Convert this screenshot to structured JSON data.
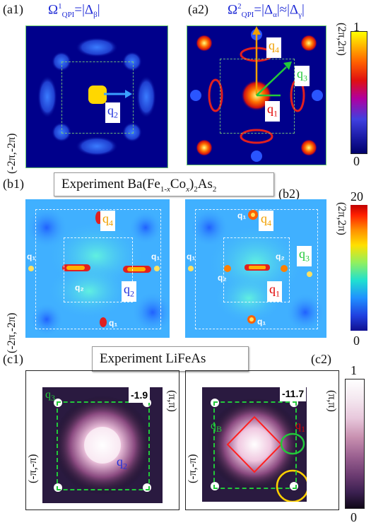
{
  "labels": {
    "a1": "(a1)",
    "a2": "(a2)",
    "b1": "(b1)",
    "b2": "(b2)",
    "c1": "(c1)",
    "c2": "(c2)"
  },
  "titles": {
    "a1_formula": "Ω¹QPI=|Δβ|",
    "a2_formula": "Ω²QPI=|Δα|≈|Δγ|",
    "b_title": "Experiment Ba(Fe1-xCox)2As2",
    "c_title": "Experiment LiFeAs"
  },
  "corners": {
    "a_top": "(2π,2π)",
    "a_bottom": "(-2π,-2π)",
    "b_top": "(2π,2π)",
    "b_bottom": "(-2π,-2π)",
    "c_top": "(π,π)",
    "c_bottom": "(-π,-π)"
  },
  "colorbars": {
    "a": {
      "max": "1",
      "min": "0"
    },
    "b": {
      "max": "20",
      "min": "0"
    },
    "c": {
      "max": "1",
      "min": "0"
    }
  },
  "q_labels": {
    "a1_q2": "q2",
    "a2_q1": "q1",
    "a2_q3": "q3",
    "a2_q4": "q4",
    "b1_q4": "q4",
    "b1_q2": "q2",
    "b2_q4": "q4",
    "b2_q3": "q3",
    "b2_q1": "q1",
    "c1_q3": "q3",
    "c1_q2": "q2",
    "c2_qB": "qB",
    "c2_q1": "q1"
  },
  "values": {
    "c1_value": "-1.9",
    "c2_value": "-11.7"
  },
  "colors": {
    "formula_blue": "#1f2bd6",
    "q2_blue": "#2233dd",
    "q1_red": "#e00000",
    "q3_green": "#22c83a",
    "q4_orange": "#f0a000"
  }
}
